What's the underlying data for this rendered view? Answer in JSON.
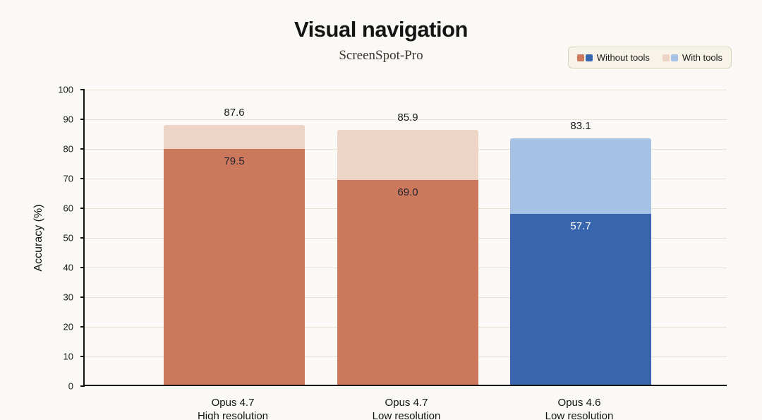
{
  "title": "Visual navigation",
  "subtitle": "ScreenSpot-Pro",
  "ylabel": "Accuracy (%)",
  "legend": [
    {
      "label": "Without tools",
      "swatches": [
        "#CC785C",
        "#3866AE"
      ]
    },
    {
      "label": "With tools",
      "swatches": [
        "#EDD4C6",
        "#A6C3E6"
      ]
    }
  ],
  "chart_data": {
    "type": "bar",
    "stacked": true,
    "title": "Visual navigation",
    "subtitle": "ScreenSpot-Pro",
    "xlabel": "",
    "ylabel": "Accuracy (%)",
    "ylim": [
      0,
      100
    ],
    "yticks": [
      0,
      10,
      20,
      30,
      40,
      50,
      60,
      70,
      80,
      90,
      100
    ],
    "grid": true,
    "legend_position": "top-right",
    "categories": [
      "Opus 4.7 High resolution",
      "Opus 4.7 Low resolution",
      "Opus 4.6 Low resolution"
    ],
    "series": [
      {
        "name": "Without tools",
        "values": [
          79.5,
          69.0,
          57.7
        ]
      },
      {
        "name": "With tools (total)",
        "values": [
          87.6,
          85.9,
          83.1
        ]
      }
    ],
    "bars": [
      {
        "name": "Opus 4.7",
        "sub": "High resolution",
        "without": 79.5,
        "with_total": 87.6,
        "without_label": "79.5",
        "total_label": "87.6",
        "color_without": "#CC785C",
        "color_with": "#EDD4C6",
        "inside_label_color": "#1f2430"
      },
      {
        "name": "Opus 4.7",
        "sub": "Low resolution",
        "without": 69.0,
        "with_total": 85.9,
        "without_label": "69.0",
        "total_label": "85.9",
        "color_without": "#CC785C",
        "color_with": "#EDD4C6",
        "inside_label_color": "#1f2430"
      },
      {
        "name": "Opus 4.6",
        "sub": "Low resolution",
        "without": 57.7,
        "with_total": 83.1,
        "without_label": "57.7",
        "total_label": "83.1",
        "color_without": "#3866AE",
        "color_with": "#A6C3E6",
        "inside_label_color": "#ffffff"
      }
    ]
  }
}
